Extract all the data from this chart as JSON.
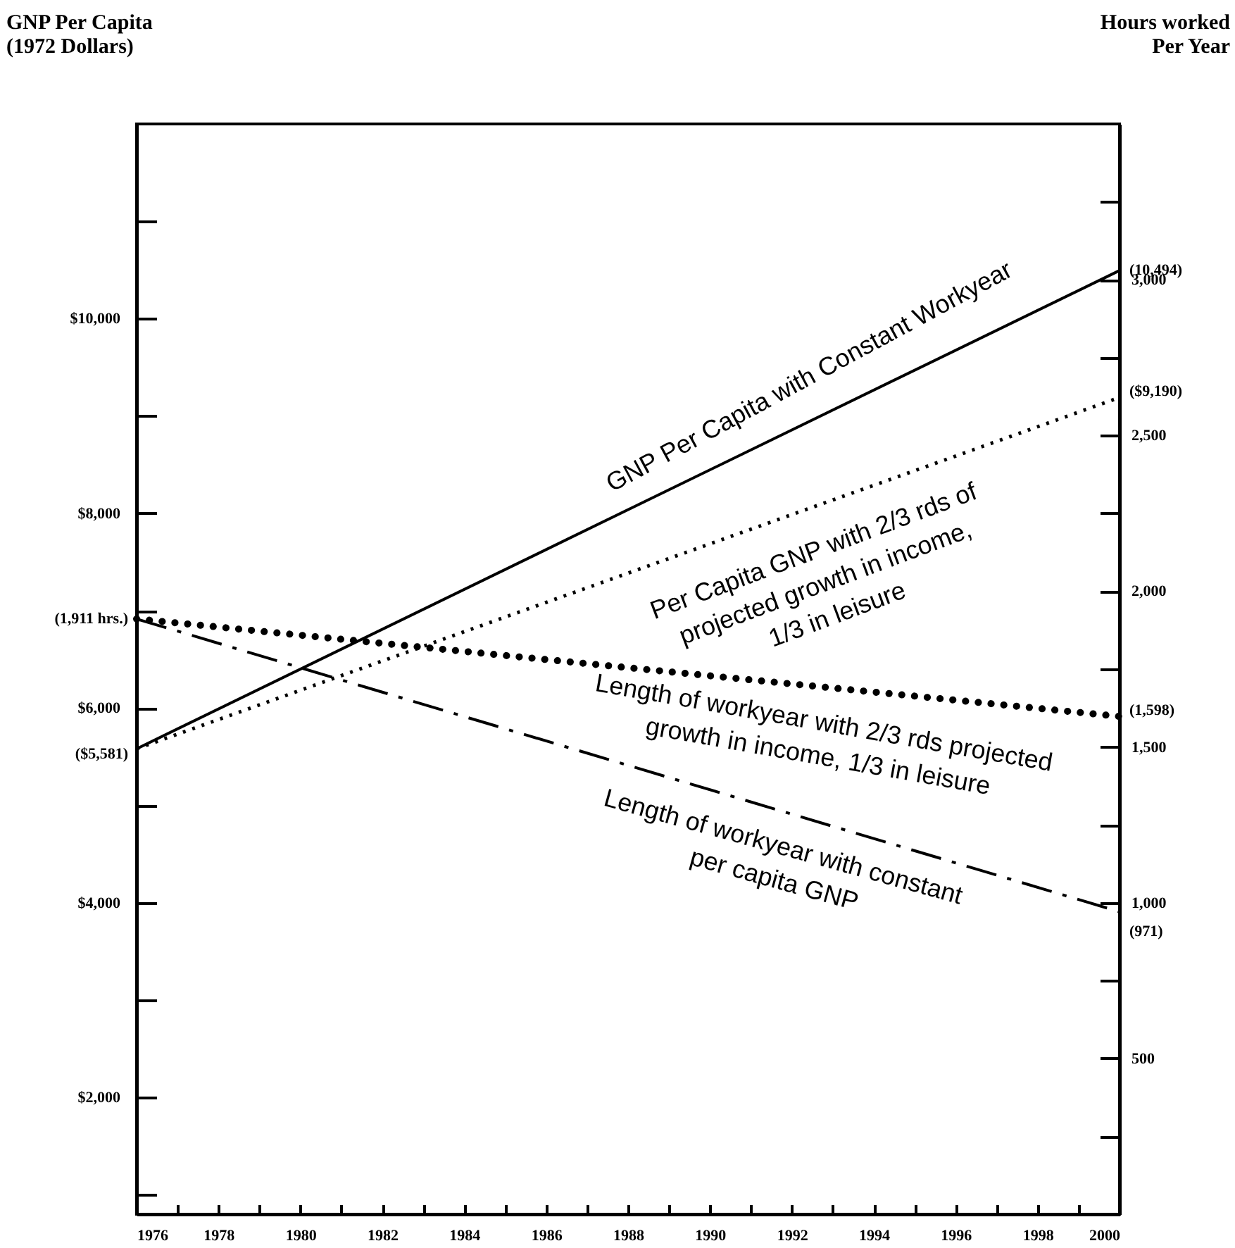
{
  "chart_data": {
    "type": "line",
    "ylabel": "GNP Per Capita (1972 Dollars)",
    "y2label": "Hours worked Per Year",
    "x": [
      1976,
      2000
    ],
    "xlim": [
      1976,
      2000
    ],
    "xticks": [
      1976,
      {
        "value": 1977,
        "label": null
      },
      1978,
      {
        "value": 1979,
        "label": null
      },
      1980,
      {
        "value": 1981,
        "label": null
      },
      1982,
      {
        "value": 1983,
        "label": null
      },
      1984,
      {
        "value": 1985,
        "label": null
      },
      1986,
      {
        "value": 1987,
        "label": null
      },
      1988,
      {
        "value": 1989,
        "label": null
      },
      1990,
      {
        "value": 1991,
        "label": null
      },
      1992,
      {
        "value": 1993,
        "label": null
      },
      1994,
      {
        "value": 1995,
        "label": null
      },
      1996,
      {
        "value": 1997,
        "label": null
      },
      1998,
      {
        "value": 1999,
        "label": null
      },
      2000
    ],
    "ylim": [
      800,
      12000
    ],
    "yticks": [
      {
        "value": 1000,
        "label": null
      },
      {
        "value": 2000,
        "label": "$2,000"
      },
      {
        "value": 3000,
        "label": null
      },
      {
        "value": 4000,
        "label": "$4,000"
      },
      {
        "value": 5000,
        "label": null
      },
      {
        "value": 6000,
        "label": "$6,000"
      },
      {
        "value": 7000,
        "label": null
      },
      {
        "value": 8000,
        "label": "$8,000"
      },
      {
        "value": 9000,
        "label": null
      },
      {
        "value": 10000,
        "label": "$10,000"
      },
      {
        "value": 11000,
        "label": null
      }
    ],
    "y2lim": [
      0,
      3500
    ],
    "y2ticks": [
      {
        "value": 250,
        "label": null
      },
      {
        "value": 500,
        "label": "500"
      },
      {
        "value": 750,
        "label": null
      },
      {
        "value": 1000,
        "label": "1,000"
      },
      {
        "value": 1250,
        "label": null
      },
      {
        "value": 1500,
        "label": "1,500"
      },
      {
        "value": 1750,
        "label": null
      },
      {
        "value": 2000,
        "label": "2,000"
      },
      {
        "value": 2250,
        "label": null
      },
      {
        "value": 2500,
        "label": "2,500"
      },
      {
        "value": 2750,
        "label": null
      },
      {
        "value": 3000,
        "label": "3,000"
      },
      {
        "value": 3250,
        "label": null
      }
    ],
    "series": [
      {
        "name": "GNP Per Capita with Constant Workyear",
        "color": "#000000",
        "line_style": "solid",
        "values": [
          5581,
          10494
        ],
        "value_labels": [
          "($5,581)",
          "(10,494)"
        ]
      },
      {
        "name": "Per Capita GNP with 2/3 rds of projected growth in income, 1/3 in leisure",
        "color": "#000000",
        "line_style": "dotted",
        "values": [
          5581,
          9190
        ],
        "value_labels": [
          null,
          "($9,190)"
        ]
      },
      {
        "name": "Length of workyear with 2/3 rds projected growth in income, 1/3 in leisure",
        "color": "#000000",
        "line_style": "dotted",
        "axis": "y2",
        "values": [
          1911,
          1598
        ],
        "value_labels": [
          "(1,911 hrs.)",
          "(1,598)"
        ]
      },
      {
        "name": "Length of workyear with constant per capita GNP",
        "color": "#000000",
        "line_style": "dashed",
        "axis": "y2",
        "values": [
          1911,
          971
        ],
        "value_labels": [
          null,
          "(971)"
        ]
      }
    ]
  }
}
